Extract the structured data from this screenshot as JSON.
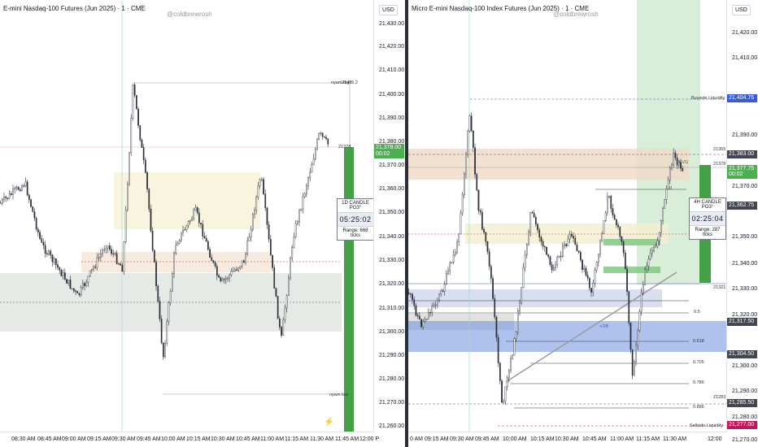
{
  "left": {
    "title": "E-mini Nasdaq-100 Futures (Jun 2025) · 1 · CME",
    "watermark": "@coldbrewrosh",
    "currency": "USD",
    "price_ticks": [
      "21,430.00",
      "21,420.00",
      "21,410.00",
      "21,400.00",
      "21,390.00",
      "21,380.00",
      "21,370.00",
      "21,360.00",
      "21,350.00",
      "21,340.00",
      "21,330.00",
      "21,320.00",
      "21,310.00",
      "21,300.00",
      "21,290.00",
      "21,280.00",
      "21,270.00",
      "21,260.00"
    ],
    "current_price": "21,378.00",
    "countdown": "00:02",
    "time_ticks": [
      "08:30 AM",
      "08:45 AM",
      "09:00 AM",
      "09:15 AM",
      "09:30 AM",
      "09:45 AM",
      "10:00 AM",
      "10:15 AM",
      "10:30 AM",
      "10:45 AM",
      "11:00 AM",
      "11:15 AM",
      "11:30 AM",
      "11:45 AM",
      "12:00 P"
    ],
    "annotations": {
      "high": "21405.2",
      "high_tag": "nyam high",
      "mid": "21378",
      "low_tag": "nyam low"
    },
    "timer": {
      "header": "1D CANDLE PO3°",
      "time": "05:25:02",
      "range": "Range: 668 ticks"
    }
  },
  "right": {
    "title": "Micro E-mini Nasdaq-100 Index Futures (Jun 2025) · 1 · CME",
    "watermark": "@coldbrewrosh",
    "currency": "USD",
    "price_ticks": [
      "21,420.00",
      "21,410.00",
      "21,390.00",
      "21,370.00",
      "21,350.00",
      "21,340.00",
      "21,330.00",
      "21,320.00",
      "21,300.00",
      "21,290.00",
      "21,280.00",
      "21,270.00"
    ],
    "tags": [
      {
        "text": "21,404.75",
        "color": "#3b5bd6"
      },
      {
        "text": "21,383.00",
        "color": "#434651"
      },
      {
        "text": "21,377.75",
        "color": "#4caf50"
      },
      {
        "text": "00:02",
        "color": "#4caf50"
      },
      {
        "text": "21,362.75",
        "color": "#434651"
      },
      {
        "text": "21,317.50",
        "color": "#434651"
      },
      {
        "text": "21,304.50",
        "color": "#434651"
      },
      {
        "text": "21,285.50",
        "color": "#434651"
      },
      {
        "text": "21,277.00",
        "color": "#c2185b"
      }
    ],
    "time_ticks": [
      "0 AM",
      "09:15 AM",
      "09:30 AM",
      "09:45 AM",
      "10:00 AM",
      "10:15 AM",
      "10:30 AM",
      "10:45 AM",
      "11:00 AM",
      "11:15 AM",
      "11:30 AM",
      "12:00"
    ],
    "annotations": {
      "buyside": "Buyside Liquidity",
      "sellside": "Sellside Liquidity",
      "fib_05": "0.5",
      "fib_0618": "0.618",
      "fib_0705": "0.705",
      "fib_0786": "0.786",
      "fib_0886": "0.886",
      "fvg": "FVG",
      "zero": "0",
      "p21355": "21355",
      "p21378": "21378",
      "p21321": "21321",
      "p21283": "21283",
      "ob": "+OB"
    },
    "timer": {
      "header": "4H CANDLE PO3°",
      "time": "02:25:04",
      "range": "Range: 287 ticks"
    }
  }
}
